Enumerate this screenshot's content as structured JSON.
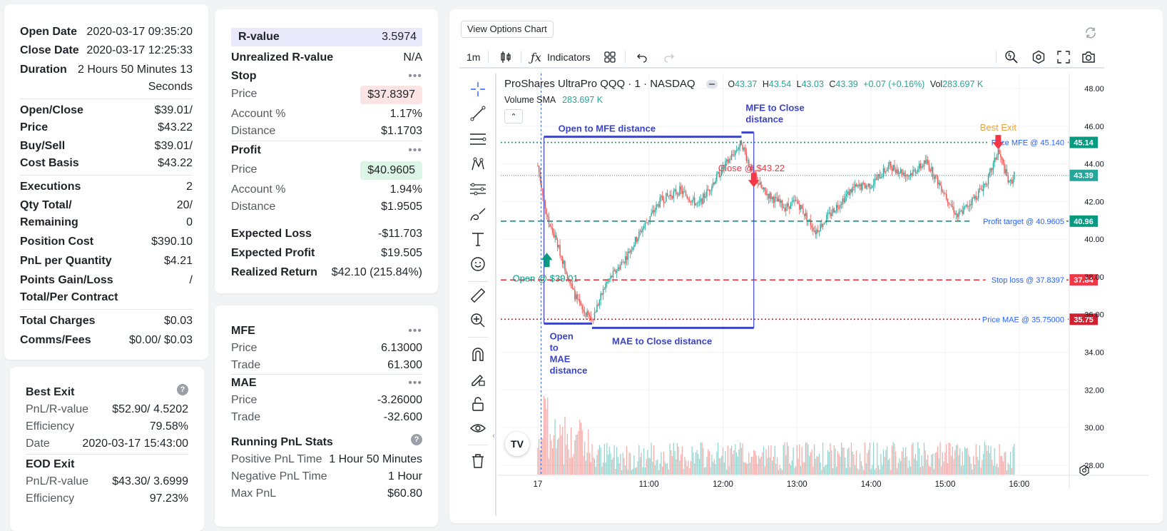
{
  "trade": {
    "open_date_label": "Open Date",
    "open_date": "2020-03-17 09:35:20",
    "close_date_label": "Close Date",
    "close_date": "2020-03-17 12:25:33",
    "duration_label": "Duration",
    "duration_l1": "2 Hours 50 Minutes 13",
    "duration_l2": "Seconds",
    "oc_label_l1": "Open/Close",
    "oc_label_l2": "Price",
    "oc_val_l1": "$39.01/",
    "oc_val_l2": "$43.22",
    "bs_label_l1": "Buy/Sell",
    "bs_label_l2": "Cost Basis",
    "bs_val_l1": "$39.01/",
    "bs_val_l2": "$43.22",
    "exec_label": "Executions",
    "exec_val": "2",
    "qty_label_l1": "Qty Total/",
    "qty_label_l2": "Remaining",
    "qty_val_l1": "20/",
    "qty_val_l2": "0",
    "pos_cost_label": "Position Cost",
    "pos_cost_val": "$390.10",
    "pnl_qty_label": "PnL per Quantity",
    "pnl_qty_val": "$4.21",
    "points_label_l1": "Points Gain/Loss",
    "points_label_l2": "Total/Per Contract",
    "points_val": "/",
    "charges_label": "Total Charges",
    "charges_val": "$0.03",
    "comms_label": "Comms/Fees",
    "comms_val": "$0.00/ $0.03"
  },
  "exits": {
    "best_title": "Best Exit",
    "best_pnl_label": "PnL/R-value",
    "best_pnl_val": "$52.90/ 4.5202",
    "best_eff_label": "Efficiency",
    "best_eff_val": "79.58%",
    "best_date_label": "Date",
    "best_date_val": "2020-03-17 15:43:00",
    "eod_title": "EOD Exit",
    "eod_pnl_label": "PnL/R-value",
    "eod_pnl_val": "$43.30/ 3.6999",
    "eod_eff_label": "Efficiency",
    "eod_eff_val": "97.23%"
  },
  "risk": {
    "rvalue_label": "R-value",
    "rvalue_val": "3.5974",
    "unreal_label": "Unrealized R-value",
    "unreal_val": "N/A",
    "stop_title": "Stop",
    "menu_dots": "•••",
    "stop_price_label": "Price",
    "stop_price_val": "$37.8397",
    "stop_acct_label": "Account %",
    "stop_acct_val": "1.17%",
    "stop_dist_label": "Distance",
    "stop_dist_val": "$1.1703",
    "profit_title": "Profit",
    "profit_price_label": "Price",
    "profit_price_val": "$40.9605",
    "profit_acct_label": "Account %",
    "profit_acct_val": "1.94%",
    "profit_dist_label": "Distance",
    "profit_dist_val": "$1.9505",
    "exp_loss_label": "Expected Loss",
    "exp_loss_val": "-$11.703",
    "exp_profit_label": "Expected Profit",
    "exp_profit_val": "$19.505",
    "realized_label": "Realized Return",
    "realized_val": "$42.10 (215.84%)"
  },
  "excursion": {
    "mfe_title": "MFE",
    "mfe_price_label": "Price",
    "mfe_price_val": "6.13000",
    "mfe_trade_label": "Trade",
    "mfe_trade_val": "61.300",
    "mae_title": "MAE",
    "mae_price_label": "Price",
    "mae_price_val": "-3.26000",
    "mae_trade_label": "Trade",
    "mae_trade_val": "-32.600",
    "running_title": "Running PnL Stats",
    "pos_time_label": "Positive PnL Time",
    "pos_time_val": "1 Hour 50 Minutes",
    "neg_time_label": "Negative PnL Time",
    "neg_time_val": "1 Hour",
    "max_pnl_label": "Max PnL",
    "max_pnl_val": "$60.80"
  },
  "chart": {
    "view_options_label": "View Options Chart",
    "interval": "1m",
    "indicators_label": "Indicators",
    "symbol": "ProShares UltraPro QQQ · 1 · NASDAQ",
    "ohlc": {
      "o_label": "O",
      "o": "43.37",
      "h_label": "H",
      "h": "43.54",
      "l_label": "L",
      "l": "43.03",
      "c_label": "C",
      "c": "43.39",
      "chg": "+0.07 (+0.16%)",
      "vol_label": "Vol",
      "vol": "283.697 K"
    },
    "volume_label": "Volume SMA",
    "volume_val": "283.697 K",
    "y_ticks": [
      "48.00",
      "46.00",
      "44.00",
      "42.00",
      "40.00",
      "38.00",
      "36.00",
      "34.00",
      "32.00",
      "30.00",
      "28.00"
    ],
    "x_ticks": [
      "17",
      "11:00",
      "12:00",
      "13:00",
      "14:00",
      "15:00",
      "16:00"
    ],
    "price_tags": {
      "mfe": "45.14",
      "last": "43.39",
      "target": "40.96",
      "stop": "37.84",
      "mae": "35.75"
    },
    "line_labels": {
      "mfe": "Price MFE @ 45.140",
      "target": "Profit target @ 40.9605",
      "stop": "Stop loss @ 37.8397",
      "mae": "Price MAE @ 35.75000"
    },
    "annotations": {
      "open_mfe": "Open to MFE distance",
      "mfe_close_l1": "MFE to Close",
      "mfe_close_l2": "distance",
      "open_mae_l1": "Open",
      "open_mae_l2": "to",
      "open_mae_l3": "MAE",
      "open_mae_l4": "distance",
      "mae_close": "MAE to Close distance",
      "close": "Close @ $43.22",
      "open": "Open @ $39.01",
      "best_exit": "Best Exit"
    },
    "logo": "TV",
    "colors": {
      "up": "#26a69a",
      "down": "#ef5350",
      "annot": "#3c44c8",
      "stop": "#f23645",
      "target": "#089981",
      "mae": "#d1202f",
      "best": "#e8a33d"
    }
  },
  "chart_data": {
    "type": "candlestick",
    "title": "ProShares UltraPro QQQ · 1 · NASDAQ",
    "x_range": [
      "09:30",
      "16:00"
    ],
    "ylim": [
      27.5,
      48.8
    ],
    "price_path": [
      [
        "09:30",
        43.9
      ],
      [
        "09:38",
        41.0
      ],
      [
        "09:45",
        39.9
      ],
      [
        "09:50",
        38.9
      ],
      [
        "09:58",
        37.3
      ],
      [
        "10:06",
        36.2
      ],
      [
        "10:14",
        35.75
      ],
      [
        "10:25",
        37.6
      ],
      [
        "10:40",
        38.9
      ],
      [
        "10:55",
        40.6
      ],
      [
        "11:10",
        42.1
      ],
      [
        "11:25",
        42.6
      ],
      [
        "11:40",
        41.8
      ],
      [
        "11:55",
        43.3
      ],
      [
        "12:08",
        44.5
      ],
      [
        "12:15",
        45.14
      ],
      [
        "12:22",
        43.8
      ],
      [
        "12:32",
        42.6
      ],
      [
        "12:50",
        41.7
      ],
      [
        "13:00",
        42.0
      ],
      [
        "13:15",
        40.4
      ],
      [
        "13:30",
        41.6
      ],
      [
        "13:45",
        42.7
      ],
      [
        "14:00",
        42.9
      ],
      [
        "14:15",
        43.9
      ],
      [
        "14:30",
        43.4
      ],
      [
        "14:45",
        44.1
      ],
      [
        "15:00",
        42.4
      ],
      [
        "15:10",
        41.2
      ],
      [
        "15:25",
        42.3
      ],
      [
        "15:35",
        43.2
      ],
      [
        "15:43",
        44.7
      ],
      [
        "15:52",
        42.9
      ],
      [
        "15:56",
        43.39
      ]
    ],
    "levels": {
      "price_mfe": 45.14,
      "profit_target": 40.9605,
      "stop_loss": 37.8397,
      "price_mae": 35.75
    },
    "markers": [
      {
        "label": "Open @ $39.01",
        "time": "09:35",
        "price": 39.01
      },
      {
        "label": "Close @ $43.22",
        "time": "12:25",
        "price": 43.22
      },
      {
        "label": "Best Exit",
        "time": "15:43",
        "price": 44.7
      }
    ]
  }
}
